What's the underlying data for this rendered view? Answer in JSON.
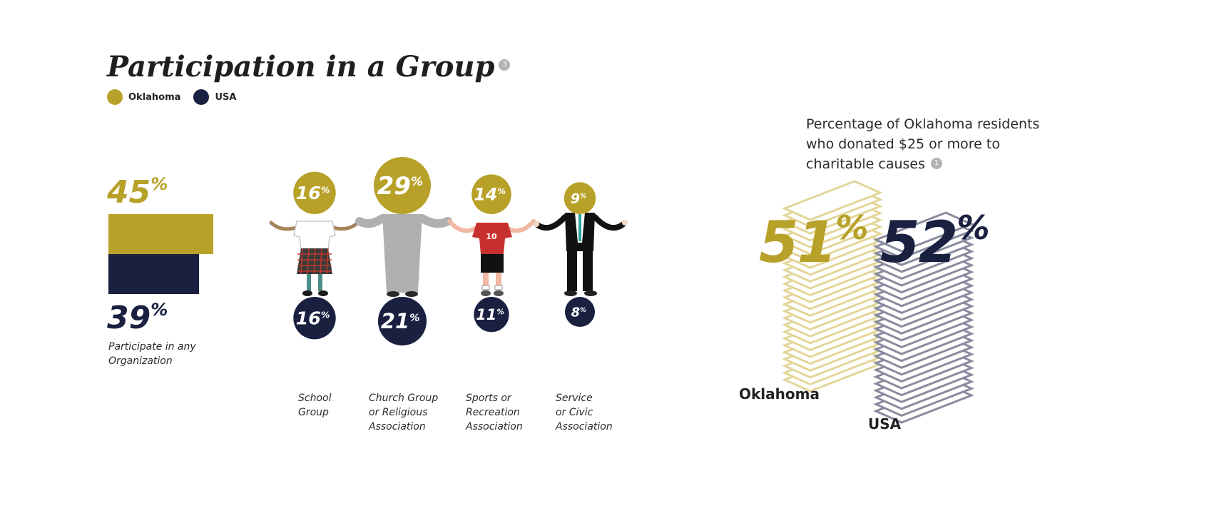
{
  "title": "Participation in a Group",
  "title_note": "3",
  "legend": [
    {
      "label": "Oklahoma",
      "color": "#b8a129"
    },
    {
      "label": "USA",
      "color": "#1a2040"
    }
  ],
  "percent_sign": "%",
  "any_org": {
    "oklahoma": 45,
    "usa": 39,
    "caption": "Participate in any\nOrganization"
  },
  "chart_data": [
    {
      "type": "bar",
      "categories": [
        "School\nGroup",
        "Church Group\nor Religious\nAssociation",
        "Sports or\nRecreation\nAssociation",
        "Service\nor Civic\nAssociation"
      ],
      "series": [
        {
          "name": "Oklahoma",
          "values": [
            16,
            29,
            14,
            9
          ]
        },
        {
          "name": "USA",
          "values": [
            16,
            21,
            11,
            8
          ]
        }
      ],
      "jersey_number": "10"
    },
    {
      "type": "bar",
      "title": "Percentage of Oklahoma residents who donated $25 or more to charitable causes",
      "title_note": "1",
      "categories": [
        "Oklahoma",
        "USA"
      ],
      "values": [
        51,
        52
      ]
    }
  ],
  "colors": {
    "oklahoma": "#b8a129",
    "usa": "#1a2040",
    "oklahoma_light": "#e3d69a",
    "usa_light": "#8a8b9e"
  }
}
